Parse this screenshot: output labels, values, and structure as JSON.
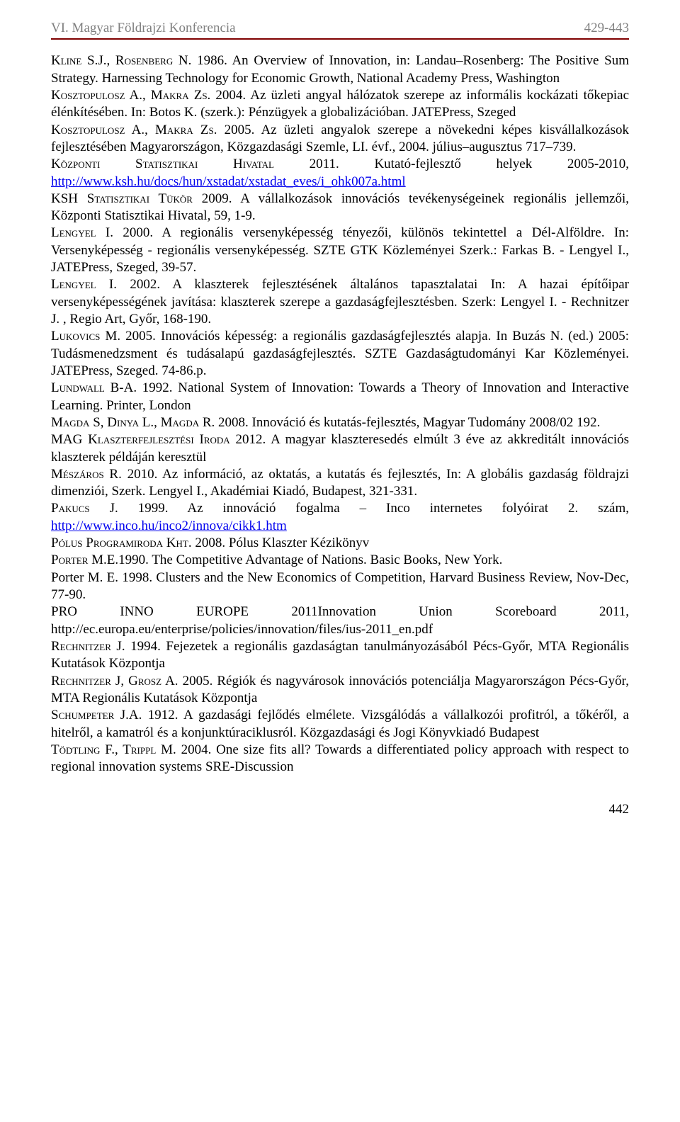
{
  "header": {
    "left": "VI. Magyar Földrajzi Konferencia",
    "right": "429-443"
  },
  "rule_color": "#7f0000",
  "header_color": "#7f7f7f",
  "link_color": "#0000ee",
  "refs": [
    {
      "segments": [
        {
          "text": "Kline S.J., Rosenberg N.",
          "sc": true
        },
        {
          "text": " 1986. An Overview of Innovation, in: Landau–Rosenberg: The Positive Sum Strategy. Harnessing Technology for Economic Growth, National Academy Press, Washington"
        }
      ]
    },
    {
      "segments": [
        {
          "text": "Kosztopulosz A., Makra Zs.",
          "sc": true
        },
        {
          "text": " 2004. Az üzleti angyal hálózatok szerepe az informális kockázati tőkepiac élénkítésében. In: Botos K. (szerk.): Pénzügyek a globalizációban. JATEPress, Szeged"
        }
      ]
    },
    {
      "segments": [
        {
          "text": "Kosztopulosz A., Makra Zs.",
          "sc": true
        },
        {
          "text": " 2005. Az üzleti angyalok szerepe a növekedni képes kisvállalkozások fejlesztésében Magyarországon, Közgazdasági Szemle, LI. évf., 2004. július–augusztus 717–739."
        }
      ]
    },
    {
      "segments": [
        {
          "text": "Központi Statisztikai Hivatal",
          "sc": true
        },
        {
          "text": " 2011. Kutató-fejlesztő helyek 2005-2010, "
        },
        {
          "text": "http://www.ksh.hu/docs/hun/xstadat/xstadat_eves/i_ohk007a.html",
          "link": true
        }
      ]
    },
    {
      "segments": [
        {
          "text": "KSH Statisztikai Tükör",
          "sc": true
        },
        {
          "text": " 2009. A vállalkozások innovációs tevékenységeinek regionális jellemzői, Központi Statisztikai Hivatal, 59, 1-9."
        }
      ]
    },
    {
      "segments": [
        {
          "text": "Lengyel I.",
          "sc": true
        },
        {
          "text": " 2000. A regionális versenyképesség tényezői, különös tekintettel a Dél-Alföldre. In: Versenyképesség - regionális versenyképesség. SZTE GTK Közleményei Szerk.: Farkas B. - Lengyel I., JATEPress, Szeged, 39-57."
        }
      ]
    },
    {
      "segments": [
        {
          "text": "Lengyel I.",
          "sc": true
        },
        {
          "text": " 2002. A klaszterek fejlesztésének általános tapasztalatai In: A hazai építőipar versenyképességének javítása: klaszterek szerepe a gazdaságfejlesztésben. Szerk: Lengyel I. - Rechnitzer J. , Regio Art, Győr, 168-190."
        }
      ]
    },
    {
      "segments": [
        {
          "text": "Lukovics M.",
          "sc": true
        },
        {
          "text": " 2005. Innovációs képesség: a regionális gazdaságfejlesztés alapja. In Buzás N. (ed.) 2005: Tudásmenedzsment és tudásalapú gazdaságfejlesztés. SZTE Gazdaságtudományi Kar Közleményei. JATEPress, Szeged. 74-86.p."
        }
      ]
    },
    {
      "segments": [
        {
          "text": "Lundwall B-A.",
          "sc": true
        },
        {
          "text": " 1992. National System of Innovation: Towards a Theory of Innovation and Interactive Learning. Printer, London"
        }
      ]
    },
    {
      "segments": [
        {
          "text": "Magda S, Dinya L., Magda R.",
          "sc": true
        },
        {
          "text": " 2008. Innováció és kutatás-fejlesztés, Magyar Tudomány 2008/02 192."
        }
      ]
    },
    {
      "segments": [
        {
          "text": "MAG Klaszterfejlesztési Iroda",
          "sc": true
        },
        {
          "text": " 2012. A magyar klaszteresedés elmúlt 3 éve az akkreditált innovációs klaszterek példáján keresztül"
        }
      ]
    },
    {
      "segments": [
        {
          "text": "Mészáros R.",
          "sc": true
        },
        {
          "text": " 2010. Az információ, az oktatás, a kutatás és fejlesztés, In: A globális gazdaság földrajzi dimenziói, Szerk. Lengyel I., Akadémiai Kiadó, Budapest, 321-331."
        }
      ]
    },
    {
      "segments": [
        {
          "text": "Pakucs J.",
          "sc": true
        },
        {
          "text": " 1999. Az innováció fogalma – Inco internetes folyóirat 2. szám, "
        },
        {
          "text": "http://www.inco.hu/inco2/innova/cikk1.htm",
          "link": true
        }
      ]
    },
    {
      "segments": [
        {
          "text": "Pólus Programiroda Kht.",
          "sc": true
        },
        {
          "text": " 2008. Pólus Klaszter Kézikönyv"
        }
      ]
    },
    {
      "segments": [
        {
          "text": "Porter M.E.",
          "sc": true
        },
        {
          "text": "1990. The Competitive Advantage of Nations. Basic Books, New York."
        }
      ]
    },
    {
      "segments": [
        {
          "text": "Porter M. E. 1998. Clusters and the New Economics of Competition, Harvard Business Review, Nov-Dec, 77-90."
        }
      ]
    },
    {
      "segments": [
        {
          "text": "PRO INNO EUROPE 2011Innovation Union Scoreboard 2011, http://ec.europa.eu/enterprise/policies/innovation/files/ius-2011_en.pdf"
        }
      ]
    },
    {
      "segments": [
        {
          "text": "Rechnitzer J.",
          "sc": true
        },
        {
          "text": " 1994. Fejezetek a regionális gazdaságtan tanulmányozásából Pécs-Győr, MTA Regionális Kutatások Központja"
        }
      ]
    },
    {
      "segments": [
        {
          "text": "Rechnitzer J, Grosz A.",
          "sc": true
        },
        {
          "text": " 2005. Régiók és nagyvárosok innovációs potenciálja Magyarországon Pécs-Győr, MTA Regionális Kutatások Központja"
        }
      ]
    },
    {
      "segments": [
        {
          "text": "Schumpeter J.A.",
          "sc": true
        },
        {
          "text": " 1912. A gazdasági fejlődés elmélete. Vizsgálódás a vállalkozói profitról, a tőkéről, a hitelről, a kamatról és a konjunktúraciklusról. Közgazdasági és Jogi Könyvkiadó Budapest"
        }
      ]
    },
    {
      "segments": [
        {
          "text": "Tödtling F., Trippl M.",
          "sc": true
        },
        {
          "text": " 2004. One size fits all? Towards a differentiated policy approach with respect to regional innovation systems SRE-Discussion"
        }
      ]
    }
  ],
  "page_number": "442"
}
